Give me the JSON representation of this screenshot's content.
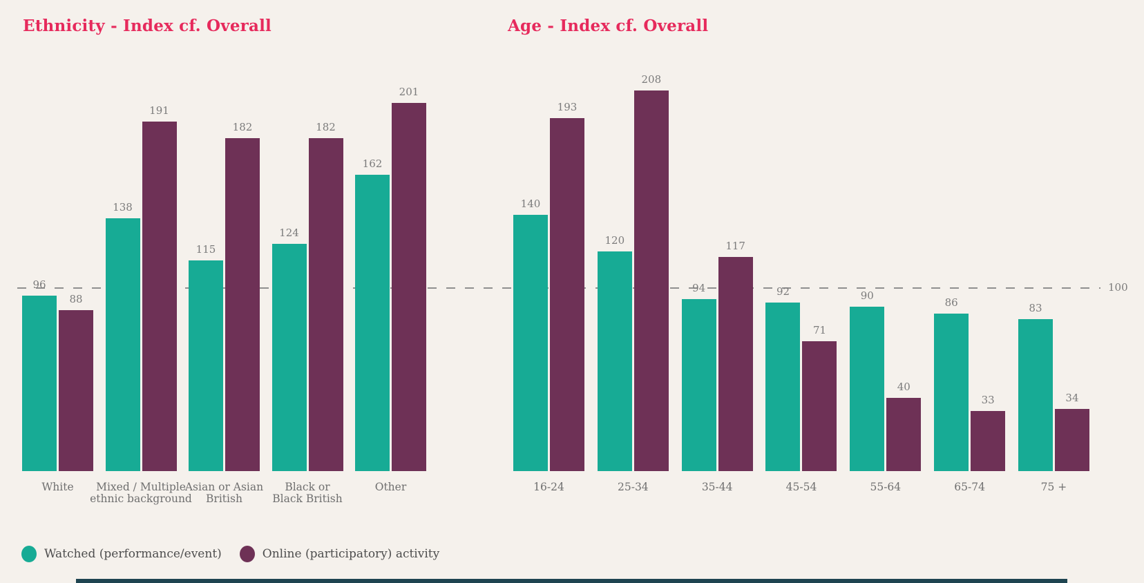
{
  "page": {
    "background_color": "#f5f1ec",
    "footer_strip_color": "#1e4450",
    "title_color": "#e62a5c",
    "value_label_color": "#7b7b7b",
    "category_label_color": "#6f6f6f",
    "reference_line_color": "#8f8f8f"
  },
  "reference_line": {
    "value": 100,
    "label": "100"
  },
  "legend": {
    "items": [
      {
        "label": "Watched (performance/event)",
        "color": "#17ab95"
      },
      {
        "label": "Online (participatory) activity",
        "color": "#6e3156"
      }
    ]
  },
  "chart_data": [
    {
      "type": "bar",
      "title": "Ethnicity - Index cf. Overall",
      "categories": [
        "White",
        "Mixed / Multiple\nethnic background",
        "Asian or Asian\nBritish",
        "Black or\nBlack British",
        "Other"
      ],
      "series": [
        {
          "name": "Watched (performance/event)",
          "color": "#17ab95",
          "values": [
            96,
            138,
            115,
            124,
            162
          ]
        },
        {
          "name": "Online (participatory) activity",
          "color": "#6e3156",
          "values": [
            88,
            191,
            182,
            182,
            201
          ]
        }
      ],
      "value_labels": true,
      "reference_line": 100,
      "ylim": [
        0,
        219
      ],
      "grid": false,
      "legend_position": "bottom-left"
    },
    {
      "type": "bar",
      "title": "Age - Index cf. Overall",
      "categories": [
        "16-24",
        "25-34",
        "35-44",
        "45-54",
        "55-64",
        "65-74",
        "75 +"
      ],
      "series": [
        {
          "name": "Watched (performance/event)",
          "color": "#17ab95",
          "values": [
            140,
            120,
            94,
            92,
            90,
            86,
            83
          ]
        },
        {
          "name": "Online (participatory) activity",
          "color": "#6e3156",
          "values": [
            193,
            208,
            117,
            71,
            40,
            33,
            34
          ]
        }
      ],
      "value_labels": true,
      "reference_line": 100,
      "ylim": [
        0,
        219
      ],
      "grid": false,
      "legend_position": "bottom-left"
    }
  ]
}
